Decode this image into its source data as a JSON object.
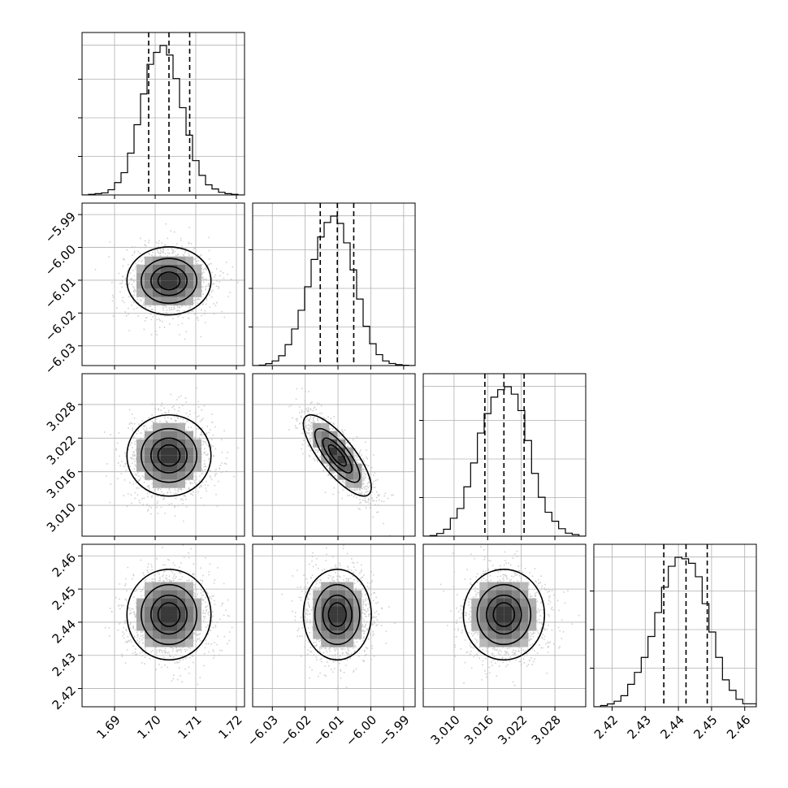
{
  "chart_data": {
    "type": "corner",
    "parameters": [
      {
        "lim": [
          1.682,
          1.722
        ],
        "ticks": [
          "1.69",
          "1.70",
          "1.71",
          "1.72"
        ],
        "tick_values": [
          1.69,
          1.7,
          1.71,
          1.72
        ],
        "median": 1.7034,
        "q16": 1.6984,
        "q84": 1.7085,
        "sigma": 0.005
      },
      {
        "lim": [
          -6.036,
          -5.9865
        ],
        "ticks": [
          "−6.03",
          "−6.02",
          "−6.01",
          "−6.00",
          "−5.99"
        ],
        "tick_values": [
          -6.03,
          -6.02,
          -6.01,
          -6.0,
          -5.99
        ],
        "median": -6.0102,
        "q16": -6.0154,
        "q84": -6.0052,
        "sigma": 0.005
      },
      {
        "lim": [
          3.0045,
          3.0335
        ],
        "ticks": [
          "3.010",
          "3.016",
          "3.022",
          "3.028"
        ],
        "tick_values": [
          3.01,
          3.016,
          3.022,
          3.028
        ],
        "median": 3.0189,
        "q16": 3.0155,
        "q84": 3.0225,
        "sigma": 0.0035
      },
      {
        "lim": [
          2.4145,
          2.4635
        ],
        "ticks": [
          "2.42",
          "2.43",
          "2.44",
          "2.45",
          "2.46"
        ],
        "tick_values": [
          2.42,
          2.43,
          2.44,
          2.45,
          2.46
        ],
        "median": 2.4423,
        "q16": 2.4356,
        "q84": 2.4487,
        "sigma": 0.0066
      }
    ],
    "histogram_heights": [
      [
        0,
        0.004,
        0.009,
        0.014,
        0.035,
        0.083,
        0.149,
        0.28,
        0.47,
        0.676,
        0.874,
        0.954,
        1.0,
        0.936,
        0.779,
        0.584,
        0.4,
        0.23,
        0.131,
        0.068,
        0.04,
        0.018,
        0.009,
        0.004,
        0
      ],
      [
        0,
        0.003,
        0.013,
        0.031,
        0.066,
        0.14,
        0.245,
        0.37,
        0.527,
        0.71,
        0.86,
        0.957,
        1.0,
        0.951,
        0.821,
        0.64,
        0.445,
        0.263,
        0.146,
        0.073,
        0.031,
        0.014,
        0.006,
        0.002,
        0
      ],
      [
        0,
        0.004,
        0.018,
        0.046,
        0.12,
        0.185,
        0.33,
        0.49,
        0.69,
        0.82,
        0.93,
        0.98,
        1.0,
        0.95,
        0.84,
        0.64,
        0.42,
        0.26,
        0.16,
        0.1,
        0.05,
        0.02,
        0.01,
        0
      ],
      [
        0,
        0.008,
        0.019,
        0.037,
        0.074,
        0.15,
        0.23,
        0.33,
        0.47,
        0.63,
        0.8,
        0.94,
        1.0,
        0.99,
        0.96,
        0.87,
        0.69,
        0.5,
        0.33,
        0.18,
        0.11,
        0.05,
        0.02,
        0.02
      ]
    ],
    "correlations": {
      "1_0": 0.0,
      "2_0": 0.0,
      "2_1": -0.78,
      "3_0": 0.0,
      "3_1": 0.0,
      "3_2": 0.0
    },
    "contour_levels_sigma": [
      0.5,
      1.0,
      1.5,
      2.0
    ],
    "histogram_quantile_lines": "dashed lines at 16th, 50th and 84th percentiles",
    "grid": true
  }
}
